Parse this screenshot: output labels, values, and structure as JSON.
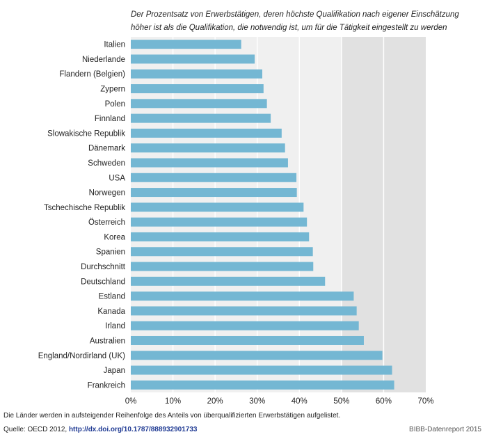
{
  "chart_data": {
    "type": "bar",
    "orientation": "horizontal",
    "title_lines": [
      "Der Prozentsatz von Erwerbstätigen, deren höchste Qualifikation nach eigener Einschätzung",
      "höher ist als die Qualifikation, die notwendig ist, um für die Tätigkeit eingestellt zu werden"
    ],
    "categories": [
      "Italien",
      "Niederlande",
      "Flandern (Belgien)",
      "Zypern",
      "Polen",
      "Finnland",
      "Slowakische Republik",
      "Dänemark",
      "Schweden",
      "USA",
      "Norwegen",
      "Tschechische Republik",
      "Österreich",
      "Korea",
      "Spanien",
      "Durchschnitt",
      "Deutschland",
      "Estland",
      "Kanada",
      "Irland",
      "Australien",
      "England/Nordirland (UK)",
      "Japan",
      "Frankreich"
    ],
    "values": [
      26.2,
      29.4,
      31.2,
      31.5,
      32.3,
      33.2,
      35.8,
      36.6,
      37.3,
      39.3,
      39.4,
      41.0,
      41.8,
      42.3,
      43.2,
      43.3,
      46.1,
      52.9,
      53.6,
      54.1,
      55.3,
      59.7,
      62.0,
      62.5
    ],
    "xlim": [
      0,
      70
    ],
    "ticks": [
      0,
      10,
      20,
      30,
      40,
      50,
      60,
      70
    ],
    "tick_labels": [
      "0%",
      "10%",
      "20%",
      "30%",
      "40%",
      "50%",
      "60%",
      "70%"
    ],
    "grid": true,
    "bar_color": "#74b7d3",
    "grid_color": "#ffffff",
    "panel_colors": [
      "#f0f0f0",
      "#e1e1e1"
    ]
  },
  "footer": {
    "note": "Die Länder werden in aufsteigender Reihenfolge des Anteils von überqualifizierten Erwerbstätigen aufgelistet.",
    "source_prefix": "Quelle: OECD 2012, ",
    "source_link": "http://dx.doi.org/10.1787/888932901733",
    "brand": "BIBB-Datenreport 2015"
  }
}
